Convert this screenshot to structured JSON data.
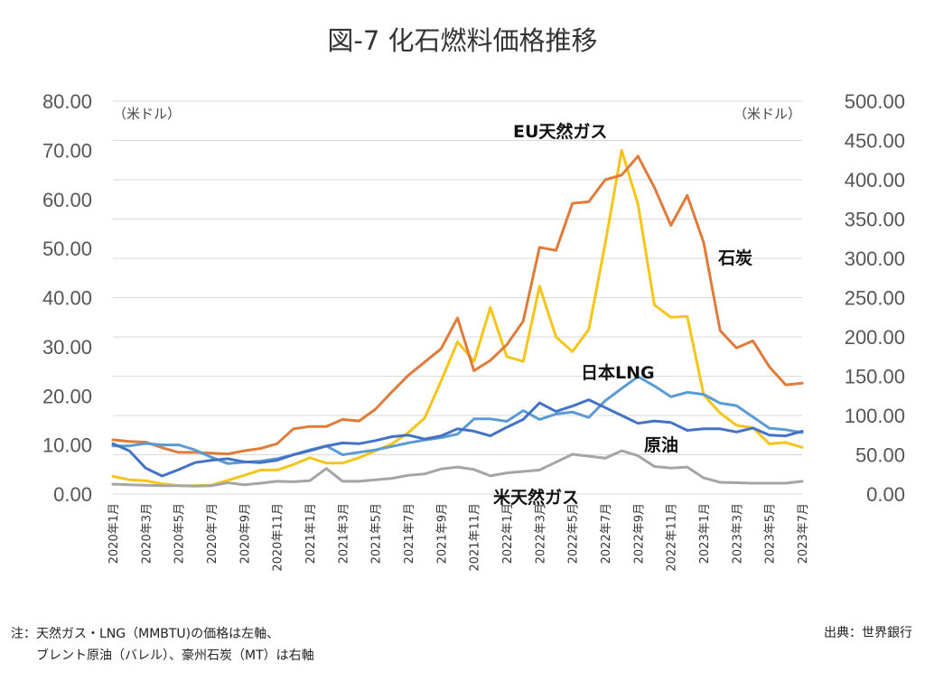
{
  "title": "図-7 化石燃料価格推移",
  "notes": {
    "line1": "注：天然ガス・LNG（MMBTU)の価格は左軸、",
    "line2": "　　ブレント原油（バレル）、豪州石炭（MT）は右軸",
    "source": "出典：世界銀行"
  },
  "chart_data": {
    "type": "line",
    "title": "図-7 化石燃料価格推移",
    "left_axis": {
      "unit": "（米ドル）",
      "range": [
        0,
        80
      ],
      "ticks": [
        "0.00",
        "10.00",
        "20.00",
        "30.00",
        "40.00",
        "50.00",
        "60.00",
        "70.00",
        "80.00"
      ]
    },
    "right_axis": {
      "unit": "（米ドル）",
      "range": [
        0,
        500
      ],
      "ticks": [
        "0.00",
        "50.00",
        "100.00",
        "150.00",
        "200.00",
        "250.00",
        "300.00",
        "350.00",
        "400.00",
        "450.00",
        "500.00"
      ]
    },
    "grid": "horizontal",
    "x": [
      "2020年1月",
      "2020年2月",
      "2020年3月",
      "2020年4月",
      "2020年5月",
      "2020年6月",
      "2020年7月",
      "2020年8月",
      "2020年9月",
      "2020年10月",
      "2020年11月",
      "2020年12月",
      "2021年1月",
      "2021年2月",
      "2021年3月",
      "2021年4月",
      "2021年5月",
      "2021年6月",
      "2021年7月",
      "2021年8月",
      "2021年9月",
      "2021年10月",
      "2021年11月",
      "2021年12月",
      "2022年1月",
      "2022年2月",
      "2022年3月",
      "2022年4月",
      "2022年5月",
      "2022年6月",
      "2022年7月",
      "2022年8月",
      "2022年9月",
      "2022年10月",
      "2022年11月",
      "2022年12月",
      "2023年1月",
      "2023年2月",
      "2023年3月",
      "2023年4月",
      "2023年5月",
      "2023年6月",
      "2023年7月"
    ],
    "x_tick_labels": [
      "2020年1月",
      "2020年3月",
      "2020年5月",
      "2020年7月",
      "2020年9月",
      "2020年11月",
      "2021年1月",
      "2021年3月",
      "2021年5月",
      "2021年7月",
      "2021年9月",
      "2021年11月",
      "2022年1月",
      "2022年3月",
      "2022年5月",
      "2022年7月",
      "2022年9月",
      "2022年11月",
      "2023年1月",
      "2023年3月",
      "2023年5月",
      "2023年7月"
    ],
    "series": [
      {
        "name": "EU天然ガス",
        "axis": "left",
        "color": "#F5C518",
        "values": [
          3.6,
          2.9,
          2.7,
          2.1,
          1.7,
          1.7,
          1.8,
          2.8,
          3.8,
          4.9,
          4.9,
          6.0,
          7.4,
          6.3,
          6.3,
          7.4,
          8.8,
          10.2,
          12.5,
          15.5,
          23.0,
          31.0,
          27.0,
          38.0,
          28.0,
          27.0,
          42.3,
          32.0,
          29.0,
          33.5,
          51.0,
          70.0,
          59.0,
          38.5,
          36.0,
          36.2,
          20.2,
          16.5,
          14.0,
          13.5,
          10.2,
          10.5,
          9.5
        ]
      },
      {
        "name": "石炭",
        "axis": "right",
        "color": "#E07B39",
        "values": [
          69,
          67,
          66,
          59,
          53,
          53,
          52,
          51,
          55,
          58,
          64,
          83,
          86,
          86,
          95,
          93,
          108,
          130,
          151,
          168,
          185,
          224,
          157,
          170,
          190,
          220,
          314,
          310,
          370,
          372,
          400,
          406,
          430,
          390,
          342,
          380,
          320,
          208,
          186,
          195,
          162,
          139,
          141
        ]
      },
      {
        "name": "日本LNG",
        "axis": "left",
        "color": "#5B9BD5",
        "values": [
          9.8,
          9.8,
          10.3,
          10.0,
          10.0,
          9.0,
          7.5,
          6.2,
          6.5,
          6.7,
          7.2,
          8.0,
          9.0,
          9.8,
          8.0,
          8.5,
          9.0,
          9.7,
          10.4,
          11.0,
          11.5,
          12.2,
          15.3,
          15.3,
          14.8,
          17.0,
          15.2,
          16.3,
          16.7,
          15.6,
          19.0,
          21.5,
          23.9,
          22.0,
          19.8,
          20.7,
          20.3,
          18.5,
          18.0,
          15.7,
          13.4,
          13.1,
          12.5
        ]
      },
      {
        "name": "原油",
        "axis": "right",
        "color": "#4472C4",
        "values": [
          64,
          55,
          33,
          23,
          31,
          40,
          43,
          45,
          41,
          40,
          43,
          50,
          55,
          61,
          65,
          64,
          68,
          73,
          75,
          70,
          74,
          83,
          80,
          74,
          85,
          95,
          116,
          105,
          112,
          120,
          110,
          100,
          90,
          93,
          91,
          81,
          83,
          83,
          79,
          84,
          75,
          74,
          80
        ]
      },
      {
        "name": "米天然ガス",
        "axis": "left",
        "color": "#A5A5A5",
        "values": [
          2.0,
          1.9,
          1.8,
          1.7,
          1.7,
          1.6,
          1.7,
          2.3,
          1.9,
          2.2,
          2.6,
          2.5,
          2.7,
          5.2,
          2.6,
          2.6,
          2.9,
          3.2,
          3.8,
          4.1,
          5.1,
          5.5,
          5.0,
          3.7,
          4.3,
          4.6,
          4.9,
          6.5,
          8.1,
          7.7,
          7.3,
          8.8,
          7.8,
          5.6,
          5.3,
          5.5,
          3.3,
          2.4,
          2.3,
          2.2,
          2.2,
          2.2,
          2.6
        ]
      }
    ],
    "series_labels": {
      "eu_gas": "EU天然ガス",
      "coal": "石炭",
      "japan_lng": "日本LNG",
      "crude": "原油",
      "us_gas": "米天然ガス"
    }
  }
}
